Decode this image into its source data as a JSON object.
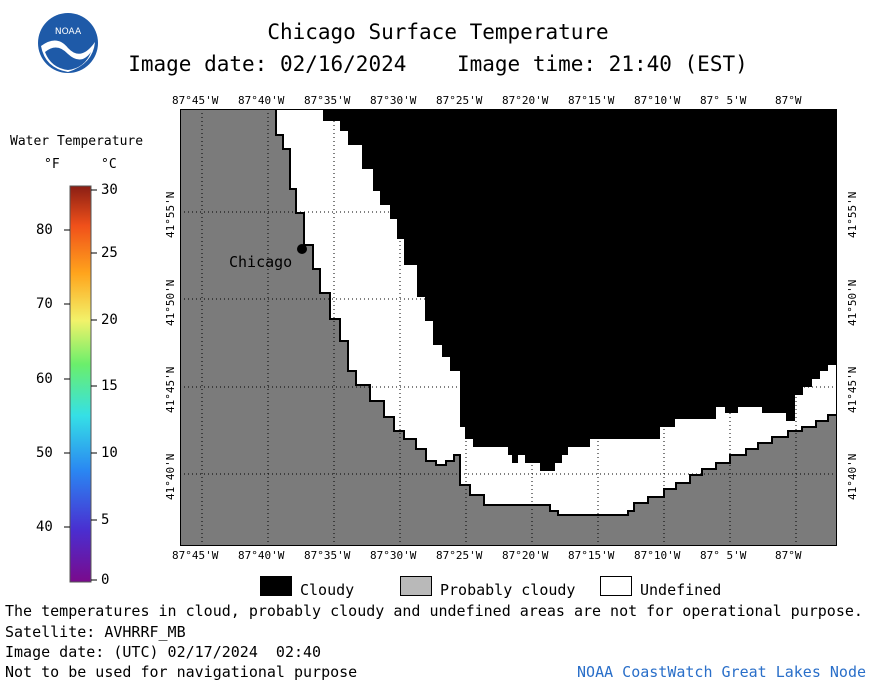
{
  "header": {
    "title": "Chicago Surface Temperature",
    "subtitle": "Image date: 02/16/2024    Image time: 21:40 (EST)"
  },
  "logo": {
    "text": "NOAA"
  },
  "colorbar": {
    "title": "Water Temperature",
    "unit_f": "°F",
    "unit_c": "°C",
    "f_ticks": [
      "80",
      "70",
      "60",
      "50",
      "40"
    ],
    "c_ticks": [
      "30",
      "25",
      "20",
      "15",
      "10",
      "5",
      "0"
    ]
  },
  "map": {
    "lon_labels": [
      "87°45'W",
      "87°40'W",
      "87°35'W",
      "87°30'W",
      "87°25'W",
      "87°20'W",
      "87°15'W",
      "87°10'W",
      "87° 5'W",
      "87°W"
    ],
    "lat_labels": [
      "41°55'N",
      "41°50'N",
      "41°45'N",
      "41°40'N"
    ],
    "city": "Chicago",
    "colors": {
      "land": "#7b7b7b",
      "cloudy": "#000000",
      "undefined": "#ffffff"
    }
  },
  "key": {
    "cloudy": "Cloudy",
    "probably_cloudy": "Probably cloudy",
    "undefined": "Undefined"
  },
  "footer": {
    "line1": "The temperatures in cloud, probably cloudy and undefined areas are not for operational purpose.",
    "line2": "Satellite: AVHRRF_MB",
    "line3": "Image date: (UTC) 02/17/2024  02:40",
    "line4": "Not to be used for navigational purpose",
    "credit": "NOAA CoastWatch Great Lakes Node"
  }
}
